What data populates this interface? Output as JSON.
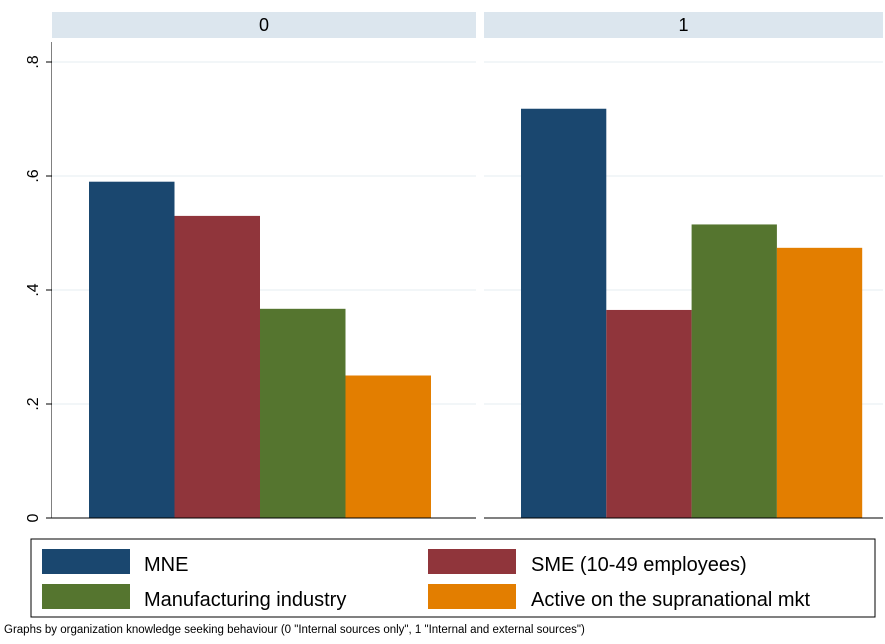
{
  "chart_data": {
    "type": "bar",
    "ylim": [
      0,
      0.85
    ],
    "yticks": [
      0,
      0.2,
      0.4,
      0.6,
      0.8
    ],
    "ytick_labels": [
      "0",
      ".2",
      ".4",
      ".6",
      ".8"
    ],
    "grid": true,
    "legend_position": "bottom",
    "panels": [
      {
        "title": "0",
        "values": [
          0.59,
          0.53,
          0.367,
          0.25
        ]
      },
      {
        "title": "1",
        "values": [
          0.718,
          0.365,
          0.515,
          0.474
        ]
      }
    ],
    "series": [
      {
        "name": "MNE",
        "color": "#1a476f"
      },
      {
        "name": "SME (10-49 employees)",
        "color": "#90353b"
      },
      {
        "name": "Manufacturing industry",
        "color": "#55752f"
      },
      {
        "name": "Active on the supranational mkt",
        "color": "#e37e00"
      }
    ]
  },
  "note": "Graphs by organization knowledge seeking behaviour (0 \"Internal sources only\", 1 \"Internal and external sources\")"
}
